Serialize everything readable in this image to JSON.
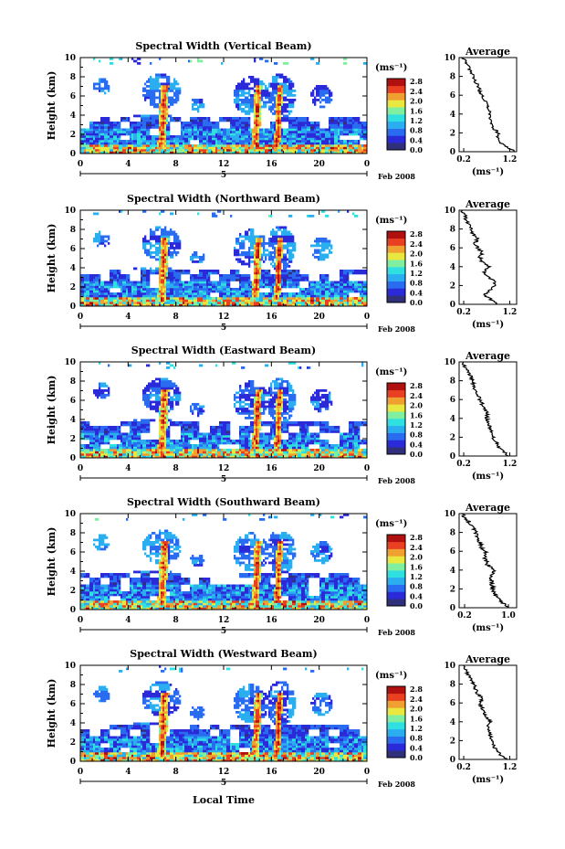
{
  "shared": {
    "xlabel": "Local Time",
    "date_label": "Feb 2008",
    "date_tick": "5",
    "colorbar_unit": "(ms⁻¹)",
    "colorbar_ticks": [
      "0.0",
      "0.4",
      "0.8",
      "1.2",
      "1.6",
      "2.0",
      "2.4",
      "2.8"
    ],
    "colorbar_colors": [
      "#30307a",
      "#2a2ad8",
      "#2a6cf0",
      "#2aaef0",
      "#30e0e0",
      "#80f0a0",
      "#e8e840",
      "#f0a030",
      "#e84020",
      "#b01010"
    ],
    "avg_title": "Average",
    "avg_xlabel": "(ms⁻¹)"
  },
  "chart_data": [
    {
      "type": "heatmap",
      "title": "Spectral Width (Vertical Beam)",
      "ylabel": "Height (km)",
      "xlim": [
        0,
        24
      ],
      "ylim": [
        0,
        10
      ],
      "x_ticks": [
        "0",
        "4",
        "8",
        "12",
        "16",
        "20",
        "0"
      ],
      "y_ticks": [
        "0",
        "2",
        "4",
        "6",
        "8",
        "10"
      ],
      "colorbar_range": [
        0.0,
        2.8
      ],
      "avg_profile": {
        "type": "line",
        "title": "Average",
        "xlabel": "(ms⁻¹)",
        "x_ticks": [
          "0.2",
          "1.2"
        ],
        "xlim": [
          0.1,
          1.35
        ],
        "ylim": [
          0,
          10
        ],
        "height_km": [
          0,
          0.5,
          1,
          1.5,
          2,
          2.5,
          3,
          3.5,
          4,
          4.5,
          5,
          5.5,
          6,
          6.5,
          7,
          7.5,
          8,
          8.5,
          9,
          9.5,
          10
        ],
        "width": [
          1.3,
          1.15,
          1.0,
          0.95,
          0.95,
          0.85,
          0.8,
          0.75,
          0.78,
          0.72,
          0.7,
          0.65,
          0.6,
          0.55,
          0.52,
          0.45,
          0.42,
          0.35,
          0.3,
          0.25,
          0.18
        ]
      }
    },
    {
      "type": "heatmap",
      "title": "Spectral Width (Northward Beam)",
      "ylabel": "Height (km)",
      "xlim": [
        0,
        24
      ],
      "ylim": [
        0,
        10
      ],
      "x_ticks": [
        "0",
        "4",
        "8",
        "12",
        "16",
        "20",
        "0"
      ],
      "y_ticks": [
        "0",
        "2",
        "4",
        "6",
        "8",
        "10"
      ],
      "colorbar_range": [
        0.0,
        2.8
      ],
      "avg_profile": {
        "type": "line",
        "title": "Average",
        "xlabel": "(ms⁻¹)",
        "x_ticks": [
          "0.2",
          "1.2"
        ],
        "xlim": [
          0.1,
          1.35
        ],
        "ylim": [
          0,
          10
        ],
        "height_km": [
          0,
          0.5,
          1,
          1.5,
          2,
          2.5,
          3,
          3.5,
          4,
          4.5,
          5,
          5.5,
          6,
          6.5,
          7,
          7.5,
          8,
          8.5,
          9,
          9.5,
          10
        ],
        "width": [
          0.95,
          0.8,
          0.65,
          0.75,
          0.9,
          0.85,
          0.7,
          0.65,
          0.75,
          0.6,
          0.55,
          0.6,
          0.5,
          0.45,
          0.5,
          0.4,
          0.38,
          0.3,
          0.25,
          0.22,
          0.15
        ]
      }
    },
    {
      "type": "heatmap",
      "title": "Spectral Width (Eastward Beam)",
      "ylabel": "Height (km)",
      "xlim": [
        0,
        24
      ],
      "ylim": [
        0,
        10
      ],
      "x_ticks": [
        "0",
        "4",
        "8",
        "12",
        "16",
        "20",
        "0"
      ],
      "y_ticks": [
        "0",
        "2",
        "4",
        "6",
        "8",
        "10"
      ],
      "colorbar_range": [
        0.0,
        2.8
      ],
      "avg_profile": {
        "type": "line",
        "title": "Average",
        "xlabel": "(ms⁻¹)",
        "x_ticks": [
          "0.2",
          "1.2"
        ],
        "xlim": [
          0.1,
          1.35
        ],
        "ylim": [
          0,
          10
        ],
        "height_km": [
          0,
          0.5,
          1,
          1.5,
          2,
          2.5,
          3,
          3.5,
          4,
          4.5,
          5,
          5.5,
          6,
          6.5,
          7,
          7.5,
          8,
          8.5,
          9,
          9.5,
          10
        ],
        "width": [
          1.2,
          1.05,
          0.95,
          0.9,
          0.85,
          0.8,
          0.78,
          0.75,
          0.7,
          0.72,
          0.65,
          0.6,
          0.55,
          0.5,
          0.45,
          0.42,
          0.38,
          0.35,
          0.3,
          0.22,
          0.18
        ]
      }
    },
    {
      "type": "heatmap",
      "title": "Spectral Width (Southward Beam)",
      "ylabel": "Height (km)",
      "xlim": [
        0,
        24
      ],
      "ylim": [
        0,
        10
      ],
      "x_ticks": [
        "0",
        "4",
        "8",
        "12",
        "16",
        "20",
        "0"
      ],
      "y_ticks": [
        "0",
        "2",
        "4",
        "6",
        "8",
        "10"
      ],
      "colorbar_range": [
        0.0,
        2.8
      ],
      "avg_profile": {
        "type": "line",
        "title": "Average",
        "xlabel": "(ms⁻¹)",
        "x_ticks": [
          "0.2",
          "1.0"
        ],
        "xlim": [
          0.1,
          1.15
        ],
        "ylim": [
          0,
          10
        ],
        "height_km": [
          0,
          0.5,
          1,
          1.5,
          2,
          2.5,
          3,
          3.5,
          4,
          4.5,
          5,
          5.5,
          6,
          6.5,
          7,
          7.5,
          8,
          8.5,
          9,
          9.5,
          10
        ],
        "width": [
          1.0,
          0.9,
          0.8,
          0.75,
          0.72,
          0.7,
          0.68,
          0.7,
          0.75,
          0.62,
          0.6,
          0.55,
          0.58,
          0.5,
          0.48,
          0.42,
          0.4,
          0.35,
          0.3,
          0.22,
          0.15
        ]
      }
    },
    {
      "type": "heatmap",
      "title": "Spectral Width (Westward Beam)",
      "ylabel": "Height (km)",
      "xlim": [
        0,
        24
      ],
      "ylim": [
        0,
        10
      ],
      "x_ticks": [
        "0",
        "4",
        "8",
        "12",
        "16",
        "20",
        "0"
      ],
      "y_ticks": [
        "0",
        "2",
        "4",
        "6",
        "8",
        "10"
      ],
      "colorbar_range": [
        0.0,
        2.8
      ],
      "avg_profile": {
        "type": "line",
        "title": "Average",
        "xlabel": "(ms⁻¹)",
        "x_ticks": [
          "0.2",
          "1.2"
        ],
        "xlim": [
          0.1,
          1.35
        ],
        "ylim": [
          0,
          10
        ],
        "height_km": [
          0,
          0.5,
          1,
          1.5,
          2,
          2.5,
          3,
          3.5,
          4,
          4.5,
          5,
          5.5,
          6,
          6.5,
          7,
          7.5,
          8,
          8.5,
          9,
          9.5,
          10
        ],
        "width": [
          1.15,
          1.0,
          0.9,
          0.85,
          0.8,
          0.78,
          0.75,
          0.72,
          0.78,
          0.7,
          0.65,
          0.6,
          0.55,
          0.62,
          0.5,
          0.45,
          0.42,
          0.35,
          0.3,
          0.25,
          0.2
        ]
      }
    }
  ]
}
